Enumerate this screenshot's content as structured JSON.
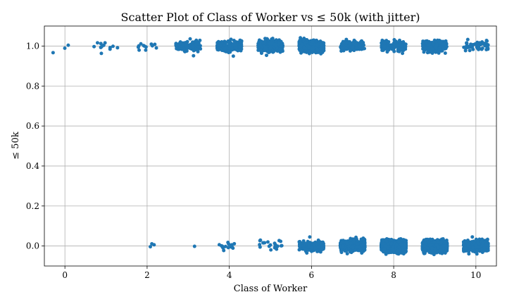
{
  "chart_data": {
    "type": "scatter",
    "title": "Scatter Plot of Class of Worker vs ≤ 50k (with jitter)",
    "xlabel": "Class of Worker",
    "ylabel": "≤ 50k",
    "xlim": [
      -0.5,
      10.5
    ],
    "ylim": [
      -0.1,
      1.1
    ],
    "xticks": [
      0,
      2,
      4,
      6,
      8,
      10
    ],
    "yticks": [
      0.0,
      0.2,
      0.4,
      0.6,
      0.8,
      1.0
    ],
    "xtick_labels": [
      "0",
      "2",
      "4",
      "6",
      "8",
      "10"
    ],
    "ytick_labels": [
      "0.0",
      "0.2",
      "0.4",
      "0.6",
      "0.8",
      "1.0"
    ],
    "grid": true,
    "jitter": {
      "x": 0.3,
      "y": 0.012
    },
    "marker_color": "#1f77b4",
    "points_by_class": [
      {
        "class": 0,
        "y1": 3,
        "y0": 0
      },
      {
        "class": 1,
        "y1": 12,
        "y0": 0
      },
      {
        "class": 2,
        "y1": 12,
        "y0": 3
      },
      {
        "class": 3,
        "y1": 120,
        "y0": 1
      },
      {
        "class": 4,
        "y1": 260,
        "y0": 18
      },
      {
        "class": 5,
        "y1": 620,
        "y0": 22
      },
      {
        "class": 6,
        "y1": 900,
        "y0": 220
      },
      {
        "class": 7,
        "y1": 180,
        "y0": 800
      },
      {
        "class": 8,
        "y1": 180,
        "y0": 2400
      },
      {
        "class": 9,
        "y1": 240,
        "y0": 1400
      },
      {
        "class": 10,
        "y1": 55,
        "y0": 700
      }
    ]
  }
}
